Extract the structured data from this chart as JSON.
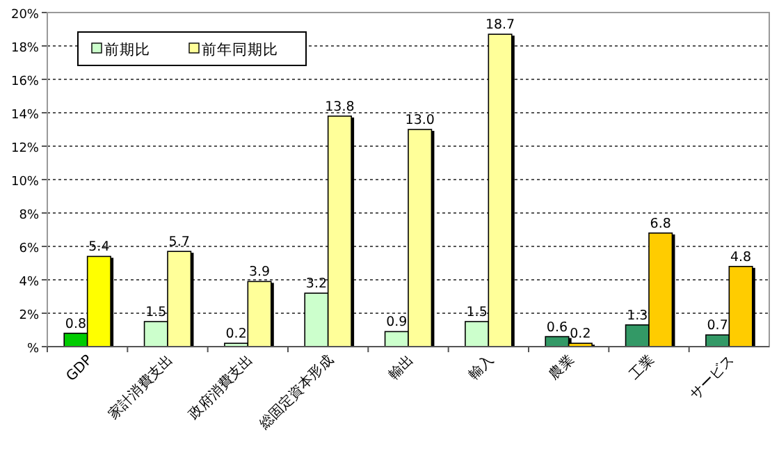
{
  "chart_data": {
    "type": "bar",
    "categories": [
      "GDP",
      "家計消費支出",
      "政府消費支出",
      "総固定資本形成",
      "輸出",
      "輸入",
      "農業",
      "工業",
      "サービス"
    ],
    "series": [
      {
        "name": "前期比",
        "color": "#ccffcc",
        "colors": [
          "#00cc00",
          "#ccffcc",
          "#ccffcc",
          "#ccffcc",
          "#ccffcc",
          "#ccffcc",
          "#339966",
          "#339966",
          "#339966"
        ],
        "values": [
          0.8,
          1.5,
          0.2,
          3.2,
          0.9,
          1.5,
          0.6,
          1.3,
          0.7
        ],
        "value_labels": [
          "0.8",
          "1.5",
          "0.2",
          "3.2",
          "0.9",
          "1.5",
          "0.6",
          "1.3",
          "0.7"
        ]
      },
      {
        "name": "前年同期比",
        "color": "#ffff99",
        "colors": [
          "#ffff00",
          "#ffff99",
          "#ffff99",
          "#ffff99",
          "#ffff99",
          "#ffff99",
          "#ffcc00",
          "#ffcc00",
          "#ffcc00"
        ],
        "values": [
          5.4,
          5.7,
          3.9,
          13.8,
          13.0,
          18.7,
          0.2,
          6.8,
          4.8
        ],
        "value_labels": [
          "5.4",
          "5.7",
          "3.9",
          "13.8",
          "13.0",
          "18.7",
          "0.2",
          "6.8",
          "4.8"
        ]
      }
    ],
    "ylim": [
      0,
      20
    ],
    "yticks": [
      {
        "value": 0,
        "label": "%"
      },
      {
        "value": 2,
        "label": "2%"
      },
      {
        "value": 4,
        "label": "4%"
      },
      {
        "value": 6,
        "label": "6%"
      },
      {
        "value": 8,
        "label": "8%"
      },
      {
        "value": 10,
        "label": "10%"
      },
      {
        "value": 12,
        "label": "12%"
      },
      {
        "value": 14,
        "label": "14%"
      },
      {
        "value": 16,
        "label": "16%"
      },
      {
        "value": 18,
        "label": "18%"
      },
      {
        "value": 20,
        "label": "20%"
      }
    ],
    "grid": "y",
    "legend": "top left"
  }
}
